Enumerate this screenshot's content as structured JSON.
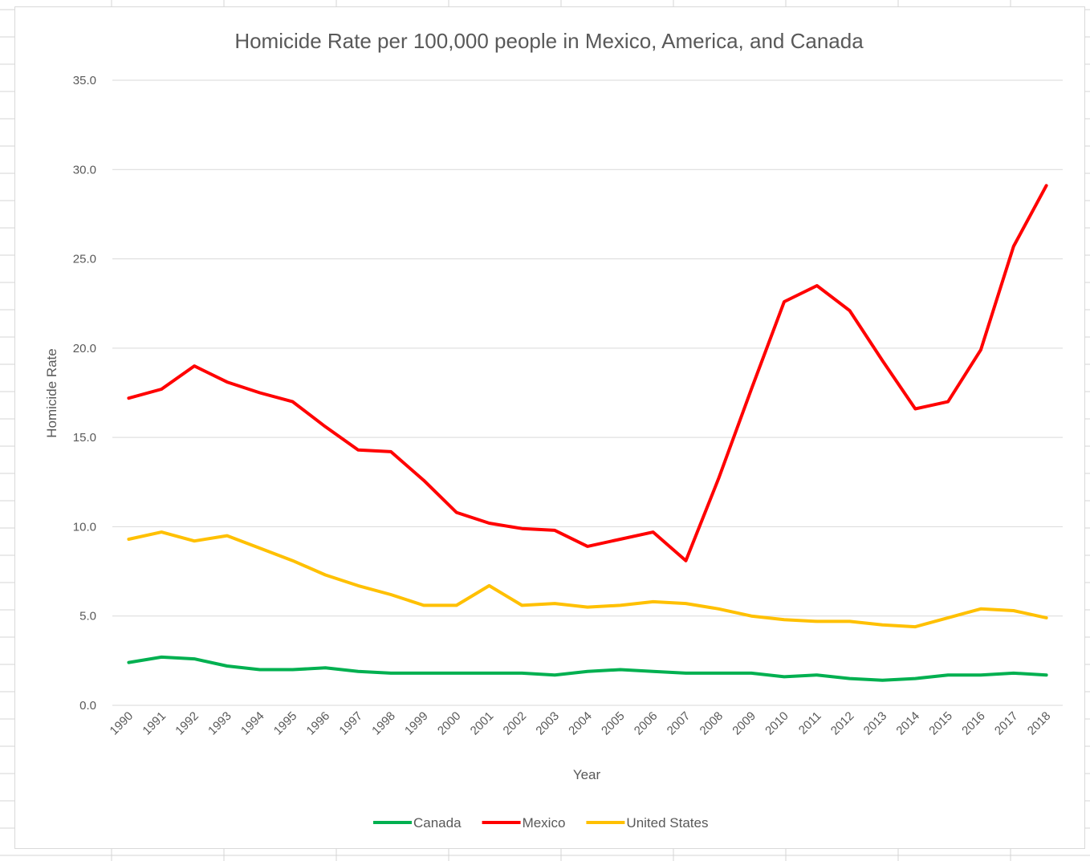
{
  "chart_data": {
    "type": "line",
    "title": "Homicide Rate per 100,000 people in Mexico, America, and Canada",
    "xlabel": "Year",
    "ylabel": "Homicide Rate",
    "ylim": [
      0,
      35
    ],
    "yticks": [
      "0.0",
      "5.0",
      "10.0",
      "15.0",
      "20.0",
      "25.0",
      "30.0",
      "35.0"
    ],
    "grid": true,
    "legend_position": "bottom",
    "categories": [
      "1990",
      "1991",
      "1992",
      "1993",
      "1994",
      "1995",
      "1996",
      "1997",
      "1998",
      "1999",
      "2000",
      "2001",
      "2002",
      "2003",
      "2004",
      "2005",
      "2006",
      "2007",
      "2008",
      "2009",
      "2010",
      "2011",
      "2012",
      "2013",
      "2014",
      "2015",
      "2016",
      "2017",
      "2018"
    ],
    "series": [
      {
        "name": "Canada",
        "color": "#00b050",
        "values": [
          2.4,
          2.7,
          2.6,
          2.2,
          2.0,
          2.0,
          2.1,
          1.9,
          1.8,
          1.8,
          1.8,
          1.8,
          1.8,
          1.7,
          1.9,
          2.0,
          1.9,
          1.8,
          1.8,
          1.8,
          1.6,
          1.7,
          1.5,
          1.4,
          1.5,
          1.7,
          1.7,
          1.8,
          1.7
        ]
      },
      {
        "name": "Mexico",
        "color": "#ff0000",
        "values": [
          17.2,
          17.7,
          19.0,
          18.1,
          17.5,
          17.0,
          15.6,
          14.3,
          14.2,
          12.6,
          10.8,
          10.2,
          9.9,
          9.8,
          8.9,
          9.3,
          9.7,
          8.1,
          12.7,
          17.7,
          22.6,
          23.5,
          22.1,
          19.3,
          16.6,
          17.0,
          19.9,
          25.7,
          29.1
        ]
      },
      {
        "name": "United States",
        "color": "#ffc000",
        "values": [
          9.3,
          9.7,
          9.2,
          9.5,
          8.8,
          8.1,
          7.3,
          6.7,
          6.2,
          5.6,
          5.6,
          6.7,
          5.6,
          5.7,
          5.5,
          5.6,
          5.8,
          5.7,
          5.4,
          5.0,
          4.8,
          4.7,
          4.7,
          4.5,
          4.4,
          4.9,
          5.4,
          5.3,
          4.9
        ]
      }
    ]
  }
}
